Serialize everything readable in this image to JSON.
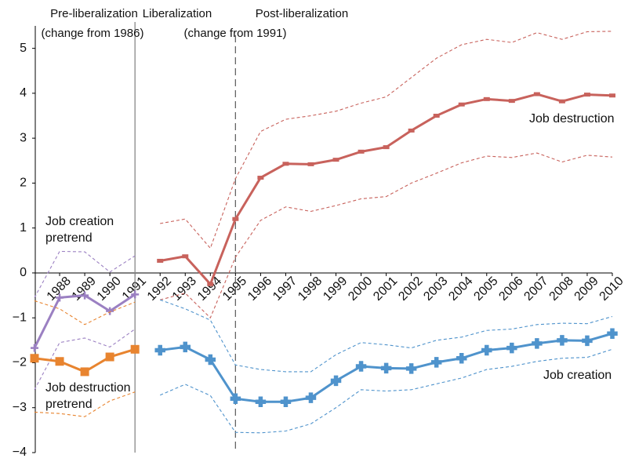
{
  "chart_data": {
    "type": "line",
    "annotations": [
      "Pre-liberalization",
      "(change from 1986)",
      "Liberalization",
      "(change from 1991)",
      "Post-liberalization"
    ],
    "xlim": [
      1987,
      2010
    ],
    "xticks": [
      1988,
      1989,
      1990,
      1991,
      1992,
      1993,
      1994,
      1995,
      1996,
      1997,
      1998,
      1999,
      2000,
      2001,
      2002,
      2003,
      2004,
      2005,
      2006,
      2007,
      2008,
      2009,
      2010
    ],
    "ylim": [
      -4,
      5.5
    ],
    "yticks": [
      {
        "value": -4,
        "label": "−4"
      },
      {
        "value": -3,
        "label": "−3"
      },
      {
        "value": -2,
        "label": "−2"
      },
      {
        "value": -1,
        "label": "−1"
      },
      0,
      1,
      2,
      3,
      4,
      5
    ],
    "vertical_lines": [
      {
        "x": 1991,
        "style": "solid"
      },
      {
        "x": 1995,
        "style": "dashed"
      }
    ],
    "series": [
      {
        "name": "Job destruction",
        "color": "#c8625c",
        "marker": "dash",
        "x": [
          1992,
          1993,
          1994,
          1995,
          1996,
          1997,
          1998,
          1999,
          2000,
          2001,
          2002,
          2003,
          2004,
          2005,
          2006,
          2007,
          2008,
          2009,
          2010
        ],
        "values": [
          0.27,
          0.37,
          -0.25,
          1.2,
          2.12,
          2.43,
          2.42,
          2.52,
          2.7,
          2.8,
          3.17,
          3.5,
          3.75,
          3.87,
          3.83,
          3.98,
          3.82,
          3.97,
          3.95
        ],
        "upper": [
          1.1,
          1.2,
          0.55,
          2.1,
          3.15,
          3.42,
          3.5,
          3.6,
          3.78,
          3.92,
          4.35,
          4.78,
          5.08,
          5.2,
          5.13,
          5.35,
          5.2,
          5.37,
          5.38
        ],
        "lower": [
          -0.6,
          -0.45,
          -1.0,
          0.35,
          1.17,
          1.47,
          1.37,
          1.5,
          1.65,
          1.7,
          2.0,
          2.22,
          2.45,
          2.6,
          2.57,
          2.67,
          2.47,
          2.62,
          2.58
        ]
      },
      {
        "name": "Job creation",
        "color": "#4f93cc",
        "marker": "plus-square",
        "x": [
          1992,
          1993,
          1994,
          1995,
          1996,
          1997,
          1998,
          1999,
          2000,
          2001,
          2002,
          2003,
          2004,
          2005,
          2006,
          2007,
          2008,
          2009,
          2010
        ],
        "values": [
          -1.72,
          -1.65,
          -1.93,
          -2.8,
          -2.87,
          -2.87,
          -2.78,
          -2.4,
          -2.08,
          -2.12,
          -2.13,
          -1.99,
          -1.9,
          -1.72,
          -1.67,
          -1.57,
          -1.5,
          -1.51,
          -1.35
        ],
        "upper": [
          -0.6,
          -0.8,
          -1.05,
          -2.05,
          -2.15,
          -2.2,
          -2.2,
          -1.82,
          -1.55,
          -1.6,
          -1.67,
          -1.5,
          -1.43,
          -1.28,
          -1.25,
          -1.15,
          -1.12,
          -1.13,
          -0.97
        ],
        "lower": [
          -2.72,
          -2.48,
          -2.73,
          -3.55,
          -3.56,
          -3.52,
          -3.36,
          -3.0,
          -2.6,
          -2.63,
          -2.6,
          -2.47,
          -2.34,
          -2.15,
          -2.08,
          -1.97,
          -1.9,
          -1.88,
          -1.7
        ]
      },
      {
        "name": "Job creation pretrend",
        "color": "#9b80c2",
        "marker": "plus",
        "x": [
          1987,
          1988,
          1989,
          1990,
          1991
        ],
        "values": [
          -1.67,
          -0.55,
          -0.5,
          -0.85,
          -0.48
        ],
        "upper": [
          -0.55,
          0.48,
          0.47,
          0.02,
          0.38
        ],
        "lower": [
          -2.6,
          -1.55,
          -1.45,
          -1.65,
          -1.25
        ]
      },
      {
        "name": "Job destruction pretrend",
        "color": "#e8842f",
        "marker": "square",
        "x": [
          1987,
          1988,
          1989,
          1990,
          1991
        ],
        "values": [
          -1.9,
          -1.97,
          -2.2,
          -1.87,
          -1.7
        ],
        "upper": [
          -0.62,
          -0.8,
          -1.15,
          -0.87,
          -0.65
        ],
        "lower": [
          -3.1,
          -3.13,
          -3.2,
          -2.85,
          -2.65
        ]
      }
    ]
  }
}
